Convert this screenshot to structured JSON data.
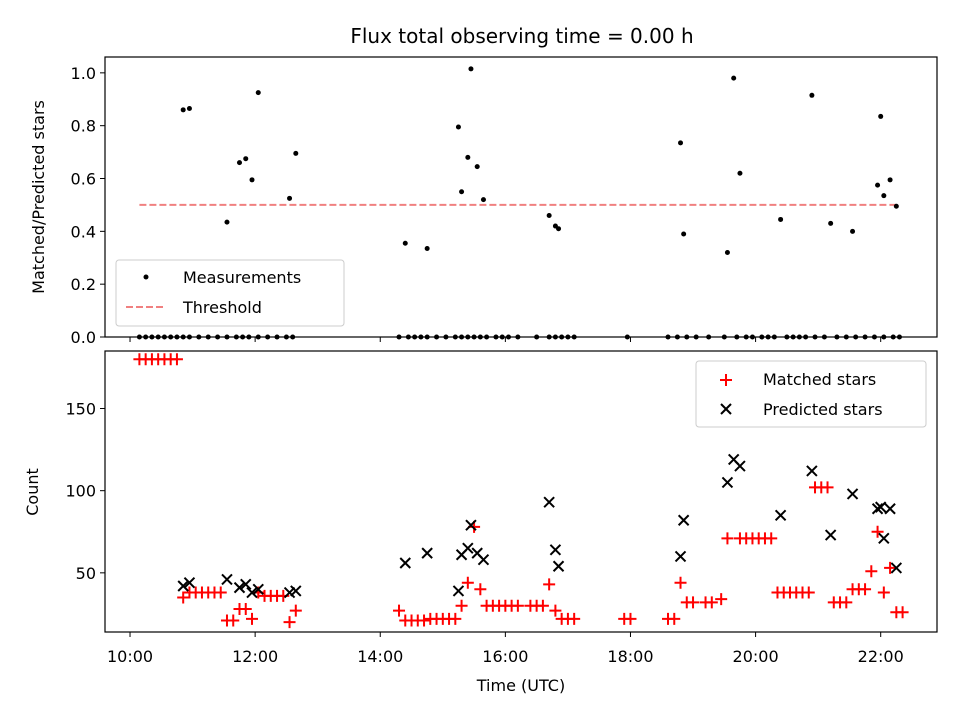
{
  "chart_data": [
    {
      "type": "scatter",
      "title": "Flux total observing time = 0.00 h",
      "ylabel": "Matched/Predicted stars",
      "xlabel": "",
      "ylim": [
        0,
        1.06
      ],
      "yticks": [
        "0.0",
        "0.2",
        "0.4",
        "0.6",
        "0.8",
        "1.0"
      ],
      "legend": {
        "placement": "lower-left",
        "entries": [
          "Measurements",
          "Threshold"
        ]
      },
      "colors": {
        "measurements": "#000000",
        "threshold": "#f08080"
      },
      "series": [
        {
          "name": "Measurements",
          "x_hours": [
            10.15,
            10.25,
            10.35,
            10.45,
            10.55,
            10.65,
            10.75,
            10.85,
            10.95,
            11.1,
            11.25,
            11.4,
            11.55,
            11.7,
            11.8,
            11.9,
            12.05,
            12.2,
            12.35,
            12.5,
            12.6,
            14.3,
            14.45,
            14.55,
            14.65,
            14.75,
            14.9,
            15.05,
            15.2,
            15.3,
            15.4,
            15.5,
            15.6,
            15.7,
            15.85,
            15.95,
            16.05,
            16.2,
            16.5,
            16.7,
            16.8,
            16.9,
            17.0,
            17.1,
            17.95,
            18.6,
            18.75,
            18.9,
            19.05,
            19.25,
            19.5,
            19.7,
            19.85,
            19.95,
            20.1,
            20.2,
            20.3,
            20.5,
            20.6,
            20.7,
            20.8,
            20.95,
            21.1,
            21.3,
            21.45,
            21.6,
            21.75,
            21.9,
            22.05,
            22.2,
            22.3,
            10.85,
            10.95,
            11.55,
            11.75,
            11.85,
            11.95,
            12.05,
            12.55,
            12.65,
            14.4,
            14.75,
            15.25,
            15.3,
            15.4,
            15.45,
            15.55,
            15.65,
            16.7,
            16.8,
            16.85,
            18.8,
            18.85,
            19.55,
            19.65,
            19.75,
            20.4,
            20.9,
            21.2,
            21.55,
            21.95,
            22.0,
            22.05,
            22.15,
            22.25
          ],
          "y": [
            0,
            0,
            0,
            0,
            0,
            0,
            0,
            0,
            0,
            0,
            0,
            0,
            0,
            0,
            0,
            0,
            0,
            0,
            0,
            0,
            0,
            0,
            0,
            0,
            0,
            0,
            0,
            0,
            0,
            0,
            0,
            0,
            0,
            0,
            0,
            0,
            0,
            0,
            0,
            0,
            0,
            0,
            0,
            0,
            0,
            0,
            0,
            0,
            0,
            0,
            0,
            0,
            0,
            0,
            0,
            0,
            0,
            0,
            0,
            0,
            0,
            0,
            0,
            0,
            0,
            0,
            0,
            0,
            0,
            0,
            0,
            0.86,
            0.865,
            0.435,
            0.66,
            0.675,
            0.595,
            0.925,
            0.525,
            0.695,
            0.355,
            0.335,
            0.795,
            0.55,
            0.68,
            1.015,
            0.645,
            0.52,
            0.46,
            0.42,
            0.41,
            0.735,
            0.39,
            0.32,
            0.98,
            0.62,
            0.445,
            0.915,
            0.43,
            0.4,
            0.575,
            0.835,
            0.535,
            0.595,
            0.495
          ]
        },
        {
          "name": "Threshold",
          "x_hours": [
            10.15,
            22.3
          ],
          "y": [
            0.5,
            0.5
          ]
        }
      ]
    },
    {
      "type": "scatter",
      "title": "",
      "ylabel": "Count",
      "xlabel": "Time (UTC)",
      "xlim_hours": [
        9.6,
        22.9
      ],
      "ylim": [
        14,
        185
      ],
      "yticks": [
        "50",
        "100",
        "150"
      ],
      "xticks": [
        "10:00",
        "12:00",
        "14:00",
        "16:00",
        "18:00",
        "20:00",
        "22:00"
      ],
      "legend": {
        "placement": "upper-right",
        "entries": [
          "Matched stars",
          "Predicted stars"
        ]
      },
      "colors": {
        "matched": "#ff0000",
        "predicted": "#000000"
      },
      "series": [
        {
          "name": "Matched stars",
          "marker": "plus",
          "x_hours": [
            10.15,
            10.25,
            10.35,
            10.45,
            10.55,
            10.65,
            10.75,
            10.85,
            10.95,
            11.05,
            11.15,
            11.25,
            11.35,
            11.45,
            11.55,
            11.65,
            11.75,
            11.85,
            11.95,
            12.05,
            12.15,
            12.25,
            12.35,
            12.45,
            12.55,
            12.65,
            14.3,
            14.4,
            14.5,
            14.6,
            14.7,
            14.8,
            14.9,
            15.0,
            15.1,
            15.2,
            15.3,
            15.4,
            15.5,
            15.6,
            15.7,
            15.8,
            15.9,
            16.0,
            16.1,
            16.2,
            16.4,
            16.5,
            16.6,
            16.7,
            16.8,
            16.9,
            17.0,
            17.1,
            17.9,
            18.0,
            18.6,
            18.7,
            18.8,
            18.9,
            19.0,
            19.2,
            19.3,
            19.45,
            19.55,
            19.75,
            19.85,
            19.95,
            20.05,
            20.15,
            20.25,
            20.35,
            20.45,
            20.55,
            20.65,
            20.75,
            20.85,
            20.95,
            21.05,
            21.15,
            21.25,
            21.35,
            21.45,
            21.55,
            21.65,
            21.75,
            21.85,
            21.95,
            22.05,
            22.15,
            22.25,
            22.35
          ],
          "y": [
            180,
            180,
            180,
            180,
            180,
            180,
            180,
            35,
            38,
            38,
            38,
            38,
            38,
            38,
            21,
            21,
            28,
            28,
            22,
            38,
            36,
            36,
            36,
            36,
            20,
            27,
            27,
            21,
            21,
            21,
            21,
            22,
            22,
            22,
            22,
            22,
            30,
            44,
            78,
            40,
            30,
            30,
            30,
            30,
            30,
            30,
            30,
            30,
            30,
            43,
            27,
            22,
            22,
            22,
            22,
            22,
            22,
            22,
            44,
            32,
            32,
            32,
            32,
            34,
            71,
            71,
            71,
            71,
            71,
            71,
            71,
            38,
            38,
            38,
            38,
            38,
            38,
            102,
            102,
            102,
            32,
            32,
            32,
            40,
            40,
            40,
            51,
            75,
            38,
            53,
            26,
            26
          ]
        },
        {
          "name": "Predicted stars",
          "marker": "x",
          "x_hours": [
            10.85,
            10.95,
            11.55,
            11.75,
            11.85,
            11.95,
            12.05,
            12.55,
            12.65,
            14.4,
            14.75,
            15.25,
            15.3,
            15.4,
            15.45,
            15.55,
            15.65,
            16.7,
            16.8,
            16.85,
            18.8,
            18.85,
            19.55,
            19.65,
            19.75,
            20.4,
            20.9,
            21.2,
            21.55,
            21.95,
            22.0,
            22.05,
            22.15,
            22.25
          ],
          "y": [
            42,
            44,
            46,
            41,
            43,
            38,
            40,
            38,
            39,
            56,
            62,
            39,
            61,
            65,
            79,
            62,
            58,
            93,
            64,
            54,
            60,
            82,
            105,
            119,
            115,
            85,
            112,
            73,
            98,
            89,
            90,
            71,
            89,
            53
          ]
        }
      ]
    }
  ]
}
